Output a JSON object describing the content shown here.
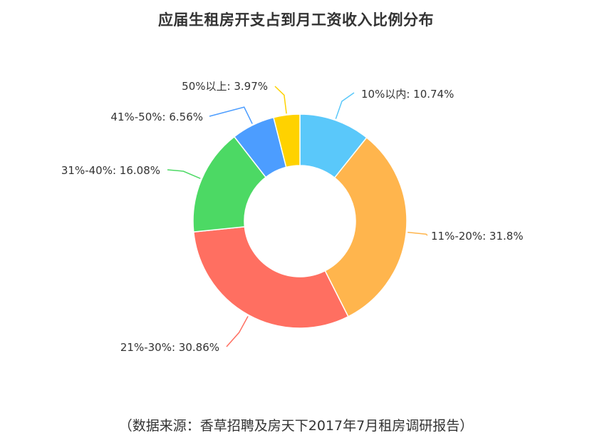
{
  "chart_data": {
    "type": "pie",
    "variant": "donut",
    "title": "应届生租房开支占到月工资收入比例分布",
    "source": "（数据来源：香草招聘及房天下2017年7月租房调研报告）",
    "slices": [
      {
        "label": "10%以内",
        "value": 10.74,
        "display": "10%以内: 10.74%",
        "color": "#5ac8fa"
      },
      {
        "label": "11%-20%",
        "value": 31.8,
        "display": "11%-20%: 31.8%",
        "color": "#ffb54d"
      },
      {
        "label": "21%-30%",
        "value": 30.86,
        "display": "21%-30%: 30.86%",
        "color": "#ff6f61"
      },
      {
        "label": "31%-40%",
        "value": 16.08,
        "display": "31%-40%: 16.08%",
        "color": "#4cd964"
      },
      {
        "label": "41%-50%",
        "value": 6.56,
        "display": "41%-50%: 6.56%",
        "color": "#4c9dff"
      },
      {
        "label": "50%以上",
        "value": 3.97,
        "display": "50%以上: 3.97%",
        "color": "#ffd200"
      }
    ]
  }
}
